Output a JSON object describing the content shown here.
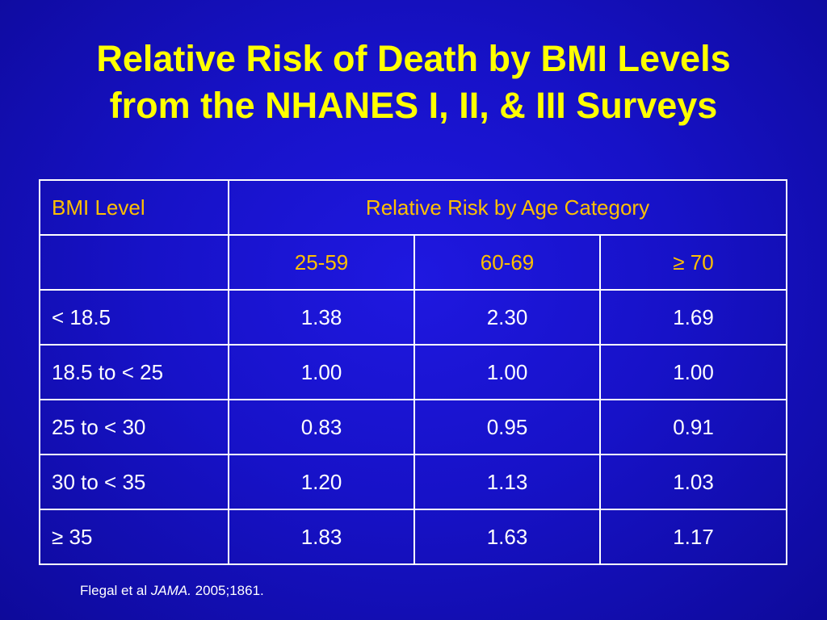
{
  "slide": {
    "title_line1": "Relative Risk of Death by BMI Levels",
    "title_line2": "from the NHANES I, II, & III Surveys"
  },
  "table": {
    "header": {
      "bmi_label": "BMI Level",
      "group_label": "Relative Risk by Age Category",
      "age_categories": [
        "25-59",
        "60-69",
        "≥ 70"
      ]
    },
    "rows": [
      {
        "bmi": "< 18.5",
        "values": [
          "1.38",
          "2.30",
          "1.69"
        ]
      },
      {
        "bmi": "18.5 to < 25",
        "values": [
          "1.00",
          "1.00",
          "1.00"
        ]
      },
      {
        "bmi": "25 to < 30",
        "values": [
          "0.83",
          "0.95",
          "0.91"
        ]
      },
      {
        "bmi": "30 to < 35",
        "values": [
          "1.20",
          "1.13",
          "1.03"
        ]
      },
      {
        "bmi": "≥ 35",
        "values": [
          "1.83",
          "1.63",
          "1.17"
        ]
      }
    ]
  },
  "citation": {
    "authors": "Flegal et al ",
    "journal": "JAMA.",
    "details": " 2005;1861."
  },
  "colors": {
    "background": "#1712c8",
    "title": "#ffff00",
    "header_text": "#ffc000",
    "body_text": "#ffffff",
    "grid": "#ffffff"
  }
}
